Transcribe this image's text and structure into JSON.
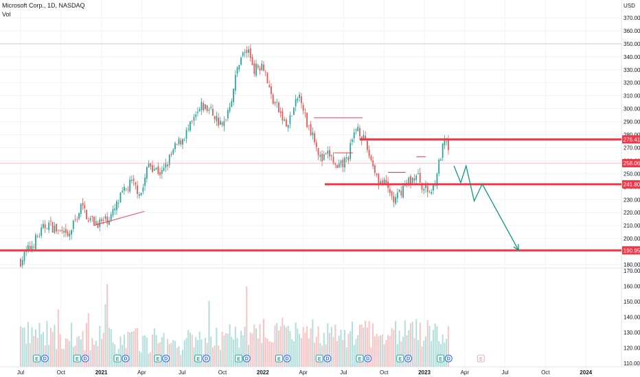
{
  "header": {
    "symbol_line": "Microsoft Corp., 1D, NASDAQ",
    "volume_label": "Vol"
  },
  "colors": {
    "up": "#26a69a",
    "down": "#ef5350",
    "up_vol": "#b2dfdb",
    "down_vol": "#f8c4c4",
    "level": "#f23645",
    "arrow": "#089981",
    "grid": "#f0f3fa",
    "text": "#131722"
  },
  "chart_data": {
    "type": "candlestick",
    "currency": "USD",
    "price_axis": {
      "min": 180,
      "max": 370,
      "ticks": [
        "180.00",
        "190.00",
        "200.00",
        "210.00",
        "220.00",
        "230.00",
        "240.00",
        "250.00",
        "260.00",
        "270.00",
        "280.00",
        "290.00",
        "300.00",
        "310.00",
        "320.00",
        "330.00",
        "340.00",
        "350.00",
        "360.00",
        "370.00"
      ]
    },
    "volume_axis": {
      "ticks": [
        "110.00",
        "120.00",
        "130.00",
        "140.00",
        "150.00",
        "160.00",
        "170.00"
      ]
    },
    "time_axis": {
      "labels": [
        "Jul",
        "Oct",
        "2021",
        "Apr",
        "Jul",
        "Oct",
        "2022",
        "Apr",
        "Jul",
        "Oct",
        "2023",
        "Apr",
        "Jul",
        "Oct",
        "2024"
      ]
    },
    "price_keypoints": [
      {
        "month": 0.0,
        "price": 183
      },
      {
        "month": 2.0,
        "price": 212
      },
      {
        "month": 3.5,
        "price": 200
      },
      {
        "month": 4.5,
        "price": 225
      },
      {
        "month": 5.2,
        "price": 214
      },
      {
        "month": 6.0,
        "price": 212
      },
      {
        "month": 6.8,
        "price": 218
      },
      {
        "month": 7.5,
        "price": 233
      },
      {
        "month": 8.2,
        "price": 243
      },
      {
        "month": 9.0,
        "price": 235
      },
      {
        "month": 9.5,
        "price": 258
      },
      {
        "month": 10.5,
        "price": 250
      },
      {
        "month": 11.5,
        "price": 270
      },
      {
        "month": 12.5,
        "price": 284
      },
      {
        "month": 13.5,
        "price": 302
      },
      {
        "month": 14.2,
        "price": 298
      },
      {
        "month": 15.0,
        "price": 285
      },
      {
        "month": 15.7,
        "price": 310
      },
      {
        "month": 16.3,
        "price": 340
      },
      {
        "month": 16.9,
        "price": 345
      },
      {
        "month": 17.4,
        "price": 330
      },
      {
        "month": 18.0,
        "price": 336
      },
      {
        "month": 18.6,
        "price": 310
      },
      {
        "month": 19.2,
        "price": 298
      },
      {
        "month": 19.8,
        "price": 285
      },
      {
        "month": 20.3,
        "price": 300
      },
      {
        "month": 20.8,
        "price": 312
      },
      {
        "month": 21.2,
        "price": 290
      },
      {
        "month": 21.8,
        "price": 280
      },
      {
        "month": 22.3,
        "price": 260
      },
      {
        "month": 23.0,
        "price": 265
      },
      {
        "month": 23.5,
        "price": 252
      },
      {
        "month": 24.3,
        "price": 262
      },
      {
        "month": 25.0,
        "price": 288
      },
      {
        "month": 25.4,
        "price": 278
      },
      {
        "month": 26.0,
        "price": 262
      },
      {
        "month": 26.6,
        "price": 245
      },
      {
        "month": 27.2,
        "price": 240
      },
      {
        "month": 27.8,
        "price": 228
      },
      {
        "month": 28.3,
        "price": 238
      },
      {
        "month": 28.9,
        "price": 245
      },
      {
        "month": 29.5,
        "price": 248
      },
      {
        "month": 30.0,
        "price": 238
      },
      {
        "month": 30.5,
        "price": 236
      },
      {
        "month": 30.9,
        "price": 250
      },
      {
        "month": 31.2,
        "price": 262
      },
      {
        "month": 31.5,
        "price": 275
      },
      {
        "month": 31.7,
        "price": 269
      },
      {
        "month": 31.9,
        "price": 261
      }
    ],
    "volume_keypoints": [
      {
        "month": 0.0,
        "value": 128
      },
      {
        "month": 6.0,
        "value": 124
      },
      {
        "month": 12.0,
        "value": 121
      },
      {
        "month": 17.0,
        "value": 126
      },
      {
        "month": 19.5,
        "value": 132
      },
      {
        "month": 22.0,
        "value": 128
      },
      {
        "month": 26.0,
        "value": 127
      },
      {
        "month": 29.0,
        "value": 129
      },
      {
        "month": 32.0,
        "value": 125
      }
    ],
    "horizontal_levels": [
      {
        "label": "276.41",
        "value": 276.41
      },
      {
        "label": "258.06",
        "value": 258.06
      },
      {
        "label": "241.80",
        "value": 241.8
      },
      {
        "label": "190.95",
        "value": 190.95
      }
    ],
    "resistance_lines": [
      {
        "value": 350
      },
      {
        "value": 293
      },
      {
        "value": 266
      },
      {
        "value": 251
      },
      {
        "value": 263
      }
    ],
    "support_trendline": {
      "start": {
        "month": 5.4,
        "price": 210
      },
      "end": {
        "month": 9.2,
        "price": 221
      }
    },
    "projection_path": [
      {
        "month": 32.2,
        "price": 256
      },
      {
        "month": 32.7,
        "price": 243
      },
      {
        "month": 33.1,
        "price": 256
      },
      {
        "month": 33.7,
        "price": 229
      },
      {
        "month": 34.3,
        "price": 242
      },
      {
        "month": 37.0,
        "price": 191
      }
    ],
    "events": [
      {
        "month": 1.2,
        "kind": "E"
      },
      {
        "month": 1.8,
        "kind": "D"
      },
      {
        "month": 4.2,
        "kind": "E"
      },
      {
        "month": 4.8,
        "kind": "D"
      },
      {
        "month": 7.2,
        "kind": "E"
      },
      {
        "month": 7.8,
        "kind": "D"
      },
      {
        "month": 10.2,
        "kind": "E"
      },
      {
        "month": 10.8,
        "kind": "D"
      },
      {
        "month": 13.2,
        "kind": "E"
      },
      {
        "month": 13.8,
        "kind": "D"
      },
      {
        "month": 16.2,
        "kind": "E"
      },
      {
        "month": 16.8,
        "kind": "D"
      },
      {
        "month": 19.2,
        "kind": "E"
      },
      {
        "month": 19.8,
        "kind": "D"
      },
      {
        "month": 22.2,
        "kind": "E"
      },
      {
        "month": 22.8,
        "kind": "D"
      },
      {
        "month": 25.2,
        "kind": "E"
      },
      {
        "month": 25.8,
        "kind": "D"
      },
      {
        "month": 28.2,
        "kind": "E"
      },
      {
        "month": 28.8,
        "kind": "D"
      },
      {
        "month": 31.2,
        "kind": "E"
      },
      {
        "month": 31.8,
        "kind": "D"
      },
      {
        "month": 34.2,
        "kind": "E"
      }
    ]
  }
}
